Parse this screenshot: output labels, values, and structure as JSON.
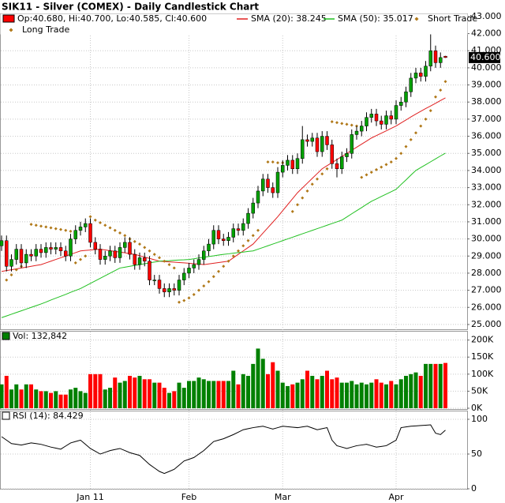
{
  "chart_data": [
    {
      "type": "candlestick",
      "title": "SIK11 - Silver (COMEX) - Daily Candlestick Chart",
      "legend_text": "Op:40.680, Hi:40.700, Lo:40.585, Cl:40.600",
      "up_color": "#00a000",
      "down_color": "#ff0000",
      "open": [
        29.6,
        29.9,
        28.4,
        28.8,
        29.4,
        28.6,
        29.1,
        29.0,
        29.4,
        29.2,
        29.5,
        29.4,
        29.5,
        29.3,
        29.0,
        30.0,
        30.5,
        30.7,
        30.9,
        29.8,
        29.4,
        28.8,
        29.0,
        29.3,
        28.9,
        29.5,
        29.8,
        29.1,
        28.5,
        28.9,
        28.7,
        27.6,
        27.6,
        27.1,
        26.9,
        27.1,
        27.0,
        27.6,
        28.0,
        28.3,
        28.5,
        28.8,
        29.3,
        29.7,
        30.5,
        30.0,
        29.9,
        30.1,
        30.6,
        30.5,
        30.9,
        31.5,
        32.1,
        32.8,
        33.5,
        33.0,
        32.7,
        33.9,
        34.3,
        34.6,
        34.1,
        34.7,
        35.8,
        35.7,
        35.9,
        35.1,
        36.0,
        35.5,
        34.4,
        34.1,
        34.8,
        35.0,
        36.1,
        36.3,
        36.6,
        37.1,
        37.3,
        36.9,
        36.7,
        37.2,
        37.0,
        37.8,
        38.0,
        38.6,
        39.4,
        39.7,
        39.5,
        40.1,
        41.0,
        40.3,
        40.68
      ],
      "high": [
        30.2,
        30.2,
        29.1,
        29.7,
        29.7,
        29.4,
        29.4,
        29.7,
        29.7,
        29.8,
        29.8,
        29.8,
        29.8,
        29.6,
        30.3,
        30.8,
        31.0,
        31.2,
        31.2,
        30.1,
        29.7,
        29.3,
        29.6,
        29.6,
        29.8,
        30.1,
        30.1,
        29.4,
        29.2,
        29.2,
        29.0,
        27.9,
        27.9,
        27.4,
        27.4,
        27.4,
        27.9,
        28.3,
        28.6,
        28.8,
        29.1,
        29.6,
        30.0,
        30.8,
        30.8,
        30.3,
        30.4,
        30.9,
        30.9,
        31.2,
        31.8,
        32.4,
        33.1,
        33.8,
        33.8,
        33.3,
        34.2,
        34.6,
        34.9,
        34.9,
        35.0,
        36.6,
        36.1,
        36.2,
        36.2,
        36.3,
        36.3,
        35.8,
        34.7,
        35.1,
        35.3,
        36.4,
        36.6,
        36.9,
        37.4,
        37.6,
        37.6,
        37.2,
        37.5,
        37.5,
        38.1,
        38.3,
        38.9,
        39.7,
        40.0,
        40.0,
        40.4,
        42.0,
        41.3,
        40.9,
        40.7
      ],
      "low": [
        29.3,
        28.1,
        28.1,
        28.5,
        28.3,
        28.3,
        28.7,
        28.7,
        28.9,
        28.9,
        29.1,
        29.1,
        29.0,
        28.7,
        28.7,
        29.7,
        30.2,
        30.4,
        29.5,
        29.1,
        28.5,
        28.5,
        28.7,
        28.6,
        28.6,
        29.2,
        28.8,
        28.2,
        28.2,
        28.4,
        27.3,
        27.3,
        26.8,
        26.6,
        26.6,
        26.7,
        26.7,
        27.3,
        27.7,
        28.0,
        28.2,
        28.5,
        29.0,
        29.4,
        29.7,
        29.6,
        29.6,
        29.8,
        30.2,
        30.2,
        30.6,
        31.2,
        31.8,
        32.5,
        32.7,
        32.4,
        32.4,
        33.6,
        34.0,
        33.8,
        33.8,
        34.4,
        35.4,
        35.4,
        34.8,
        34.8,
        35.2,
        34.1,
        33.6,
        33.8,
        34.5,
        34.7,
        35.8,
        36.0,
        36.3,
        36.8,
        36.6,
        36.4,
        36.4,
        36.7,
        36.7,
        37.5,
        37.7,
        38.3,
        39.1,
        39.2,
        39.2,
        39.8,
        40.0,
        40.0,
        40.585
      ],
      "close": [
        29.9,
        28.4,
        28.8,
        29.4,
        28.6,
        29.1,
        29.0,
        29.4,
        29.2,
        29.5,
        29.4,
        29.5,
        29.3,
        29.0,
        30.0,
        30.5,
        30.7,
        30.9,
        29.8,
        29.4,
        28.8,
        29.0,
        29.3,
        28.9,
        29.5,
        29.8,
        29.1,
        28.5,
        28.9,
        28.7,
        27.6,
        27.6,
        27.1,
        26.9,
        27.1,
        27.0,
        27.6,
        28.0,
        28.3,
        28.5,
        28.8,
        29.3,
        29.7,
        30.5,
        30.0,
        29.9,
        30.1,
        30.6,
        30.5,
        30.9,
        31.5,
        32.1,
        32.8,
        33.5,
        33.0,
        32.7,
        33.9,
        34.3,
        34.6,
        34.1,
        34.7,
        35.8,
        35.7,
        35.9,
        35.1,
        36.0,
        35.5,
        34.4,
        34.1,
        34.8,
        35.0,
        36.1,
        36.3,
        36.6,
        37.1,
        37.3,
        36.9,
        36.7,
        37.2,
        37.0,
        37.8,
        38.0,
        38.6,
        39.4,
        39.7,
        39.5,
        40.1,
        41.0,
        40.3,
        40.6,
        40.6
      ],
      "series": [
        {
          "name": "SMA (20): 38.245",
          "color": "#e02020",
          "type": "line",
          "values": [
            28.1,
            28.15,
            28.2,
            28.25,
            28.3,
            28.35,
            28.4,
            28.45,
            28.5,
            28.6,
            28.7,
            28.8,
            28.9,
            29.0,
            29.1,
            29.2,
            29.3,
            29.33,
            29.35,
            29.38,
            29.4,
            29.36,
            29.31,
            29.27,
            29.23,
            29.19,
            29.14,
            29.1,
            29.02,
            28.94,
            28.86,
            28.78,
            28.7,
            28.68,
            28.66,
            28.64,
            28.62,
            28.6,
            28.58,
            28.55,
            28.53,
            28.5,
            28.54,
            28.58,
            28.62,
            28.66,
            28.7,
            28.9,
            29.1,
            29.3,
            29.5,
            29.7,
            30.02,
            30.34,
            30.66,
            30.98,
            31.3,
            31.65,
            32.0,
            32.35,
            32.7,
            32.98,
            33.26,
            33.54,
            33.82,
            34.1,
            34.28,
            34.46,
            34.64,
            34.82,
            35.0,
            35.18,
            35.36,
            35.54,
            35.72,
            35.9,
            36.04,
            36.18,
            36.32,
            36.46,
            36.6,
            36.78,
            36.95,
            37.13,
            37.3,
            37.46,
            37.62,
            37.77,
            37.93,
            38.09,
            38.245
          ]
        },
        {
          "name": "SMA (50): 35.017",
          "color": "#20c020",
          "type": "line",
          "values": [
            25.4,
            25.5,
            25.6,
            25.7,
            25.8,
            25.9,
            26.0,
            26.1,
            26.2,
            26.31,
            26.43,
            26.54,
            26.65,
            26.76,
            26.88,
            26.99,
            27.1,
            27.25,
            27.4,
            27.55,
            27.7,
            27.85,
            28.0,
            28.15,
            28.3,
            28.35,
            28.4,
            28.45,
            28.5,
            28.55,
            28.6,
            28.65,
            28.7,
            28.72,
            28.73,
            28.75,
            28.77,
            28.78,
            28.8,
            28.84,
            28.89,
            28.93,
            28.97,
            29.01,
            29.06,
            29.1,
            29.13,
            29.17,
            29.2,
            29.23,
            29.27,
            29.3,
            29.4,
            29.5,
            29.6,
            29.7,
            29.8,
            29.9,
            30.0,
            30.1,
            30.2,
            30.3,
            30.4,
            30.5,
            30.6,
            30.7,
            30.8,
            30.9,
            31.0,
            31.1,
            31.28,
            31.47,
            31.65,
            31.83,
            32.02,
            32.2,
            32.34,
            32.48,
            32.62,
            32.76,
            32.9,
            33.18,
            33.45,
            33.73,
            34.0,
            34.17,
            34.34,
            34.51,
            34.68,
            34.85,
            35.017
          ]
        },
        {
          "name": "Short Trade",
          "color": "#b07818",
          "type": "dots",
          "values": [
            null,
            null,
            null,
            null,
            null,
            null,
            30.85,
            30.8,
            30.75,
            30.7,
            30.65,
            30.6,
            30.55,
            30.5,
            30.45,
            null,
            null,
            null,
            31.3,
            31.1,
            30.95,
            30.8,
            30.65,
            30.5,
            30.35,
            30.2,
            30.0,
            29.85,
            29.7,
            29.5,
            29.3,
            29.1,
            28.9,
            28.7,
            28.5,
            28.3,
            null,
            null,
            null,
            null,
            null,
            null,
            null,
            null,
            null,
            null,
            null,
            null,
            null,
            null,
            null,
            null,
            null,
            null,
            34.5,
            34.5,
            34.45,
            34.45,
            34.4,
            null,
            null,
            null,
            null,
            null,
            null,
            null,
            null,
            36.85,
            36.8,
            36.75,
            36.7,
            36.65,
            36.6,
            null,
            null,
            null,
            null,
            null,
            null,
            null,
            null,
            null,
            null,
            null,
            null,
            null,
            null,
            null,
            null,
            null,
            null
          ]
        },
        {
          "name": "Long Trade",
          "color": "#b07818",
          "type": "dots",
          "values": [
            null,
            27.6,
            27.9,
            28.2,
            28.4,
            null,
            null,
            null,
            null,
            null,
            null,
            null,
            null,
            null,
            null,
            28.6,
            28.8,
            29.0,
            null,
            null,
            null,
            null,
            null,
            null,
            null,
            null,
            null,
            null,
            null,
            null,
            null,
            null,
            null,
            null,
            null,
            null,
            26.3,
            26.4,
            26.55,
            26.75,
            27.0,
            27.25,
            27.5,
            27.8,
            28.1,
            28.4,
            28.7,
            29.0,
            29.3,
            29.6,
            29.9,
            30.2,
            30.5,
            null,
            null,
            null,
            null,
            null,
            null,
            31.6,
            32.0,
            32.4,
            32.8,
            33.2,
            33.5,
            33.8,
            34.1,
            null,
            null,
            null,
            null,
            null,
            null,
            33.6,
            33.75,
            33.9,
            34.05,
            34.2,
            34.35,
            34.5,
            34.7,
            35.0,
            35.4,
            35.8,
            36.2,
            36.6,
            37.0,
            37.5,
            38.3,
            38.7,
            39.2
          ]
        }
      ],
      "ylim": [
        24.72,
        43.18
      ],
      "yticks": [
        {
          "value": 25,
          "label": "25.000"
        },
        {
          "value": 26,
          "label": "26.000"
        },
        {
          "value": 27,
          "label": "27.000"
        },
        {
          "value": 28,
          "label": "28.000"
        },
        {
          "value": 29,
          "label": "29.000"
        },
        {
          "value": 30,
          "label": "30.000"
        },
        {
          "value": 31,
          "label": "31.000"
        },
        {
          "value": 32,
          "label": "32.000"
        },
        {
          "value": 33,
          "label": "33.000"
        },
        {
          "value": 34,
          "label": "34.000"
        },
        {
          "value": 35,
          "label": "35.000"
        },
        {
          "value": 36,
          "label": "36.000"
        },
        {
          "value": 37,
          "label": "37.000"
        },
        {
          "value": 38,
          "label": "38.000"
        },
        {
          "value": 39,
          "label": "39.000"
        },
        {
          "value": 40,
          "label": "40.000"
        },
        {
          "value": 41,
          "label": "41.000"
        },
        {
          "value": 42,
          "label": "42.000"
        },
        {
          "value": 43,
          "label": "43.000"
        }
      ],
      "last_label": {
        "value": 40.6,
        "label": "40.600"
      },
      "grid": true
    },
    {
      "type": "bar",
      "label": "Vol: 132,842",
      "color": "#008000",
      "values": [
        70000,
        95000,
        55000,
        70000,
        55000,
        70000,
        70000,
        55000,
        50000,
        50000,
        45000,
        50000,
        40000,
        40000,
        55000,
        60000,
        50000,
        45000,
        100000,
        100000,
        100000,
        55000,
        60000,
        90000,
        75000,
        80000,
        95000,
        90000,
        95000,
        85000,
        85000,
        75000,
        75000,
        60000,
        45000,
        50000,
        75000,
        60000,
        80000,
        80000,
        90000,
        85000,
        80000,
        80000,
        80000,
        80000,
        80000,
        110000,
        70000,
        100000,
        95000,
        130000,
        175000,
        145000,
        100000,
        135000,
        110000,
        75000,
        65000,
        70000,
        75000,
        85000,
        110000,
        95000,
        85000,
        95000,
        110000,
        85000,
        90000,
        75000,
        75000,
        80000,
        70000,
        75000,
        70000,
        75000,
        85000,
        75000,
        70000,
        80000,
        70000,
        85000,
        95000,
        100000,
        105000,
        95000,
        130000,
        130000,
        130000,
        130000,
        132842
      ],
      "ylim": [
        0,
        220000
      ],
      "yticks": [
        {
          "value": 0,
          "label": "0K"
        },
        {
          "value": 50000,
          "label": "50K"
        },
        {
          "value": 100000,
          "label": "100K"
        },
        {
          "value": 150000,
          "label": "150K"
        },
        {
          "value": 200000,
          "label": "200K"
        }
      ],
      "grid": true
    },
    {
      "type": "line",
      "label": "RSI (14): 84.429",
      "color": "#000000",
      "values": [
        75,
        70,
        65,
        64,
        63,
        64.5,
        66,
        65,
        64,
        62,
        60,
        58.5,
        57,
        61.5,
        66,
        68,
        70,
        64,
        58,
        54,
        50,
        52.5,
        55,
        56.5,
        58,
        55,
        52,
        50,
        48,
        41.5,
        35,
        30,
        25,
        22,
        25,
        28,
        34,
        40,
        42.5,
        45,
        50,
        55,
        61.5,
        68,
        70,
        72,
        75,
        78,
        81.5,
        85,
        86.5,
        88,
        89,
        90,
        88,
        86,
        88,
        90,
        89.3,
        88.7,
        88,
        89,
        90,
        87.5,
        85,
        86.5,
        88,
        70,
        62,
        60,
        58,
        60,
        62,
        63,
        64,
        62,
        60,
        61,
        62,
        66,
        70,
        88,
        89,
        90,
        90.5,
        91,
        91.5,
        92,
        80,
        78,
        84.429
      ],
      "categories": [
        null,
        null,
        null,
        null,
        null,
        null,
        null,
        null,
        null,
        null,
        null,
        null,
        null,
        null,
        null,
        null,
        null,
        null,
        "Jan 11",
        null,
        null,
        null,
        null,
        null,
        null,
        null,
        null,
        null,
        null,
        null,
        null,
        null,
        null,
        null,
        null,
        null,
        null,
        null,
        "Feb",
        null,
        null,
        null,
        null,
        null,
        null,
        null,
        null,
        null,
        null,
        null,
        null,
        null,
        null,
        null,
        null,
        null,
        null,
        "Mar",
        null,
        null,
        null,
        null,
        null,
        null,
        null,
        null,
        null,
        null,
        null,
        null,
        null,
        null,
        null,
        null,
        null,
        null,
        null,
        null,
        null,
        null,
        "Apr",
        null,
        null,
        null,
        null,
        null,
        null,
        null,
        null,
        null,
        null
      ],
      "ylim": [
        0,
        112.5
      ],
      "yticks": [
        0,
        50,
        100
      ],
      "grid": true
    }
  ]
}
